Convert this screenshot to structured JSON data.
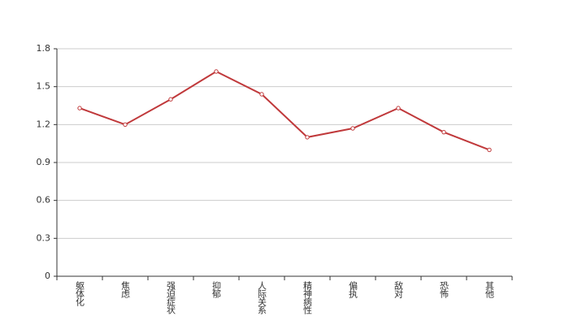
{
  "chart_data": {
    "type": "line",
    "categories": [
      "躯体化",
      "焦虑",
      "强迫症状",
      "抑郁",
      "人际关系",
      "精神病性",
      "偏执",
      "敌对",
      "恐怖",
      "其他"
    ],
    "series": [
      {
        "color": "#c0393b",
        "values": [
          1.33,
          1.2,
          1.4,
          1.62,
          1.44,
          1.1,
          1.17,
          1.33,
          1.14,
          1.0
        ]
      }
    ],
    "ylim": [
      0,
      1.8
    ],
    "yticks": [
      0,
      0.3,
      0.6,
      0.9,
      1.2,
      1.5,
      1.8
    ],
    "grid": true
  }
}
